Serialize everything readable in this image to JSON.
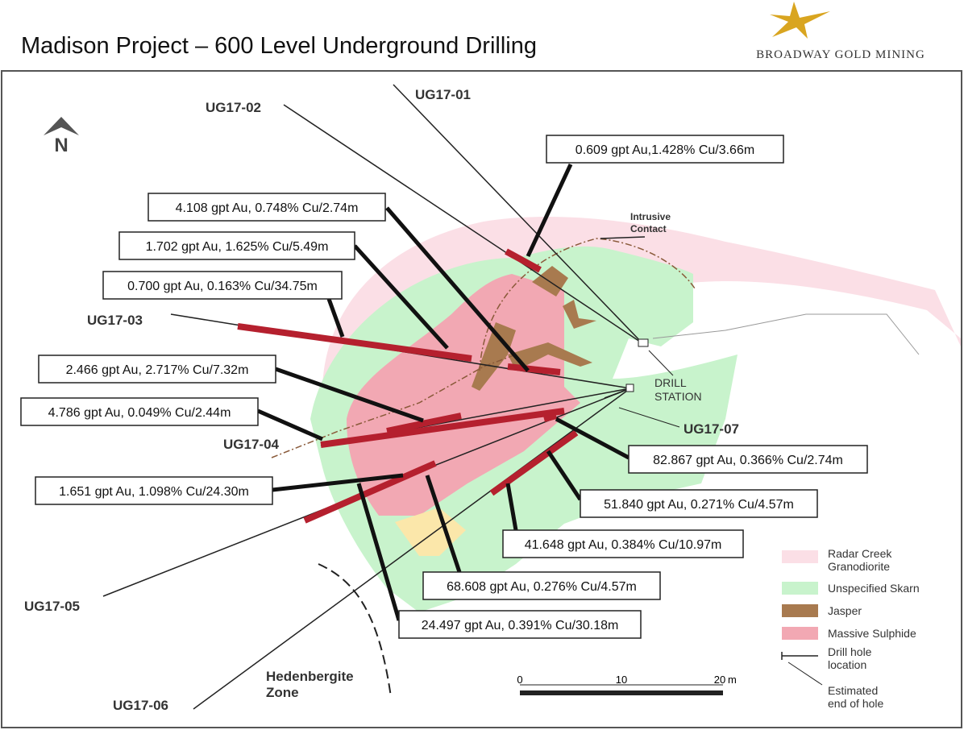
{
  "header": {
    "title": "Madison Project – 600 Level Underground Drilling",
    "logo": "BROADWAY GOLD MINING"
  },
  "map": {
    "north": "N",
    "holes": [
      "UG17-01",
      "UG17-02",
      "UG17-03",
      "UG17-04",
      "UG17-05",
      "UG17-06",
      "UG17-07"
    ],
    "intercepts": [
      "0.609 gpt Au,1.428% Cu/3.66m",
      "4.108 gpt Au, 0.748% Cu/2.74m",
      "1.702 gpt Au, 1.625% Cu/5.49m",
      "0.700 gpt Au, 0.163% Cu/34.75m",
      "2.466 gpt Au, 2.717% Cu/7.32m",
      "4.786 gpt Au, 0.049% Cu/2.44m",
      "1.651 gpt Au, 1.098% Cu/24.30m",
      "82.867 gpt Au, 0.366% Cu/2.74m",
      "51.840 gpt Au, 0.271% Cu/4.57m",
      "41.648 gpt Au, 0.384% Cu/10.97m",
      "68.608 gpt Au, 0.276% Cu/4.57m",
      "24.497 gpt Au, 0.391% Cu/30.18m"
    ],
    "intrusive_contact": [
      "Intrusive",
      "Contact"
    ],
    "drill_station": [
      "DRILL",
      "STATION"
    ],
    "zone": [
      "Hedenbergite",
      "Zone"
    ],
    "scale": [
      "0",
      "10",
      "20",
      "m"
    ]
  },
  "legend": [
    {
      "lines": [
        "Radar Creek",
        "Granodiorite"
      ]
    },
    {
      "lines": [
        "Unspecified Skarn"
      ]
    },
    {
      "lines": [
        "Jasper"
      ]
    },
    {
      "lines": [
        "Massive Sulphide"
      ]
    },
    {
      "lines": [
        "Drill hole",
        "location"
      ]
    },
    {
      "lines": [
        "Estimated",
        "end of hole"
      ]
    }
  ]
}
